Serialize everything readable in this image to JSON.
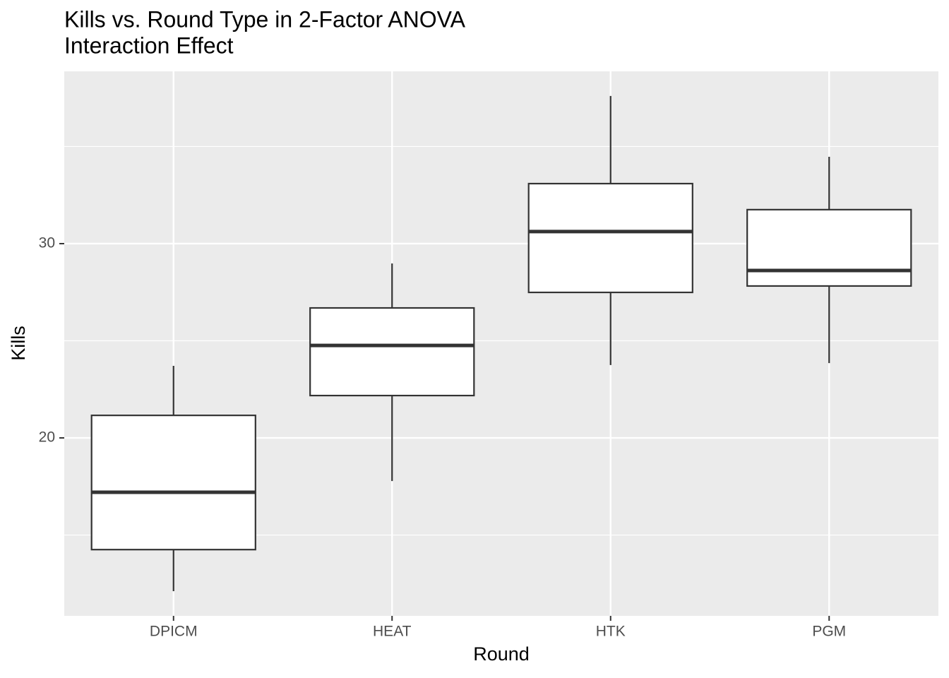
{
  "chart_data": {
    "type": "boxplot",
    "title": [
      "Kills vs. Round Type in 2-Factor ANOVA",
      "Interaction Effect"
    ],
    "x_label": "Round",
    "y_label": "Kills",
    "categories": [
      "DPICM",
      "HEAT",
      "HTK",
      "PGM"
    ],
    "min": [
      12.11,
      17.78,
      23.75,
      23.85
    ],
    "q1": [
      14.25,
      22.18,
      27.49,
      27.82
    ],
    "median": [
      17.2,
      24.76,
      30.62,
      28.62
    ],
    "q3": [
      21.16,
      26.69,
      33.09,
      31.75
    ],
    "max": [
      23.71,
      28.98,
      37.6,
      34.47
    ],
    "ylim": [
      10.84,
      38.87
    ],
    "yticks": [
      20,
      30
    ],
    "y_minor_grid": [
      15,
      25,
      35
    ],
    "grid": true,
    "box_fill": "#ffffff",
    "box_stroke": "#333333",
    "panel_color": "#ebebeb"
  }
}
